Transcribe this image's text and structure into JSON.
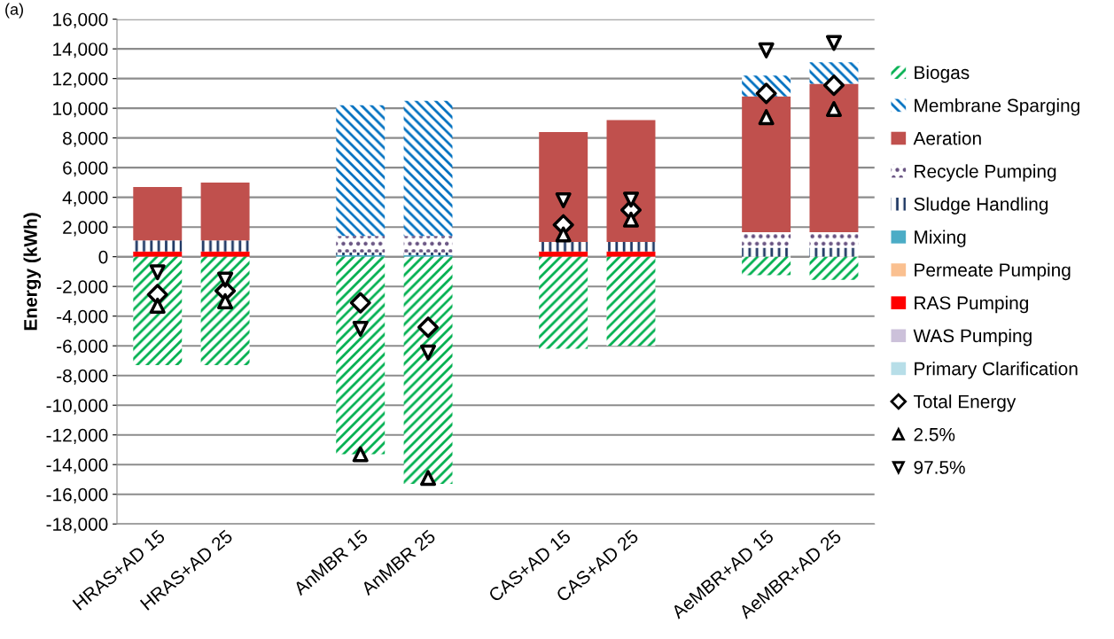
{
  "chart_data": {
    "type": "bar",
    "stacked": true,
    "ylabel": "Energy (kWh)",
    "categories": [
      "HRAS+AD 15",
      "HRAS+AD 25",
      null,
      "AnMBR 15",
      "AnMBR 25",
      null,
      "CAS+AD 15",
      "CAS+AD 25",
      null,
      "AeMBR+AD 15",
      "AeMBR+AD 25"
    ],
    "series": [
      {
        "name": "Primary Clarification",
        "color": "#b7dee8",
        "values": [
          null,
          null,
          null,
          null,
          null,
          null,
          null,
          null,
          null,
          null,
          null
        ]
      },
      {
        "name": "WAS Pumping",
        "color": "#ccc1da",
        "values": [
          null,
          null,
          null,
          null,
          null,
          null,
          null,
          null,
          null,
          null,
          null
        ]
      },
      {
        "name": "RAS Pumping",
        "color": "#ff0000",
        "values": [
          350,
          350,
          null,
          null,
          null,
          null,
          350,
          350,
          null,
          null,
          null
        ]
      },
      {
        "name": "Permeate Pumping",
        "color": "#fac090",
        "values": [
          null,
          null,
          null,
          null,
          null,
          null,
          null,
          null,
          null,
          null,
          null
        ]
      },
      {
        "name": "Mixing",
        "color": "#4bacc6",
        "values": [
          null,
          null,
          null,
          100,
          100,
          null,
          null,
          null,
          null,
          null,
          null
        ]
      },
      {
        "name": "Sludge Handling",
        "color": "#1f3864",
        "values": [
          750,
          750,
          null,
          200,
          200,
          null,
          650,
          650,
          null,
          600,
          600
        ]
      },
      {
        "name": "Recycle Pumping",
        "color": "#604a7b",
        "values": [
          null,
          null,
          null,
          1100,
          1100,
          null,
          null,
          null,
          null,
          1050,
          1050
        ]
      },
      {
        "name": "Aeration",
        "color": "#c0504d",
        "values": [
          3600,
          3900,
          null,
          null,
          null,
          null,
          7400,
          8200,
          null,
          9150,
          10000
        ]
      },
      {
        "name": "Membrane Sparging",
        "color": "#0070c0",
        "values": [
          null,
          null,
          null,
          8800,
          9100,
          null,
          null,
          null,
          null,
          1400,
          1450
        ]
      },
      {
        "name": "Biogas",
        "color": "#00b050",
        "values": [
          -7300,
          -7300,
          null,
          -13300,
          -15300,
          null,
          -6200,
          -6000,
          null,
          -1250,
          -1550
        ]
      },
      {
        "name": "Total Energy",
        "type": "scatter",
        "marker": "diamond",
        "color": "#000000",
        "values": [
          -2550,
          -2300,
          null,
          -3100,
          -4750,
          null,
          2150,
          3150,
          null,
          11000,
          11550
        ]
      },
      {
        "name": "2.5%",
        "type": "scatter",
        "marker": "triangle",
        "color": "#000000",
        "values": [
          -3300,
          -3000,
          null,
          -13300,
          -14900,
          null,
          1500,
          2500,
          null,
          9400,
          9950
        ]
      },
      {
        "name": "97.5%",
        "type": "scatter",
        "marker": "triangle_down",
        "color": "#000000",
        "values": [
          -1050,
          -1550,
          null,
          -4850,
          -6450,
          null,
          3800,
          3850,
          null,
          13900,
          14400
        ]
      }
    ],
    "ylim": [
      -18000,
      16000
    ],
    "yticks": [
      {
        "value": -18000,
        "label": "-18,000"
      },
      {
        "value": -16000,
        "label": "-16,000"
      },
      {
        "value": -14000,
        "label": "-14,000"
      },
      {
        "value": -12000,
        "label": "-12,000"
      },
      {
        "value": -10000,
        "label": "-10,000"
      },
      {
        "value": -8000,
        "label": "-8,000"
      },
      {
        "value": -6000,
        "label": "-6,000"
      },
      {
        "value": -4000,
        "label": "-4,000"
      },
      {
        "value": -2000,
        "label": "-2,000"
      },
      {
        "value": 0,
        "label": "0"
      },
      {
        "value": 2000,
        "label": "2,000"
      },
      {
        "value": 4000,
        "label": "4,000"
      },
      {
        "value": 6000,
        "label": "6,000"
      },
      {
        "value": 8000,
        "label": "8,000"
      },
      {
        "value": 10000,
        "label": "10,000"
      },
      {
        "value": 12000,
        "label": "12,000"
      },
      {
        "value": 14000,
        "label": "14,000"
      },
      {
        "value": 16000,
        "label": "16,000"
      }
    ],
    "grid": "y",
    "legend": "right",
    "annotations": [
      "(a)"
    ]
  }
}
